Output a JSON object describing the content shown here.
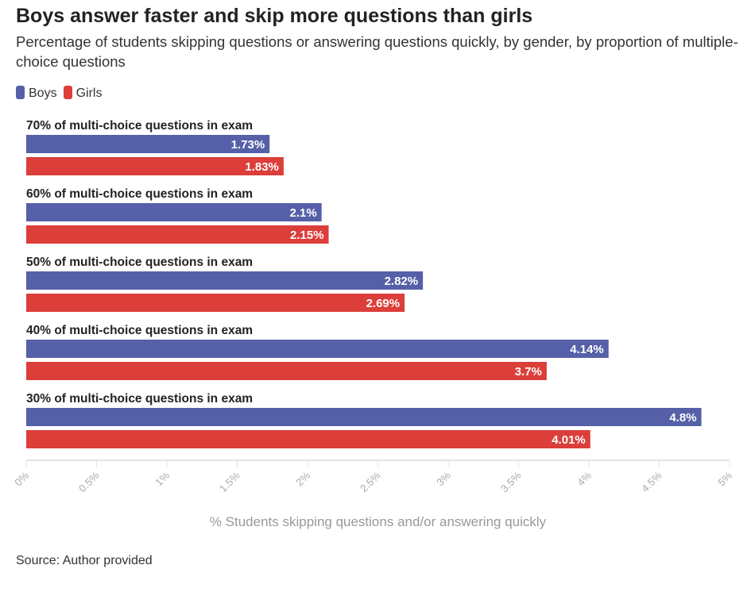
{
  "chart_data": {
    "type": "bar",
    "orientation": "horizontal",
    "title": "Boys answer faster and skip more questions than girls",
    "subtitle": "Percentage of students skipping questions or answering questions quickly, by gender, by proportion of multiple-choice questions",
    "xlabel": "% Students skipping questions and/or answering quickly",
    "xlim": [
      0,
      5
    ],
    "ticks": [
      "0%",
      "0.5%",
      "1%",
      "1.5%",
      "2%",
      "2.5%",
      "3%",
      "3.5%",
      "4%",
      "4.5%",
      "5%"
    ],
    "categories": [
      "70% of multi-choice questions in exam",
      "60% of multi-choice questions in exam",
      "50% of multi-choice questions in exam",
      "40% of multi-choice questions in exam",
      "30% of multi-choice questions in exam"
    ],
    "series": [
      {
        "name": "Boys",
        "color": "#5560a8",
        "values": [
          1.73,
          2.1,
          2.82,
          4.14,
          4.8
        ],
        "labels": [
          "1.73%",
          "2.1%",
          "2.82%",
          "4.14%",
          "4.8%"
        ]
      },
      {
        "name": "Girls",
        "color": "#dc3e3a",
        "values": [
          1.83,
          2.15,
          2.69,
          3.7,
          4.01
        ],
        "labels": [
          "1.83%",
          "2.15%",
          "2.69%",
          "3.7%",
          "4.01%"
        ]
      }
    ],
    "legend": "top-left",
    "grid": false
  },
  "source": "Source: Author provided"
}
